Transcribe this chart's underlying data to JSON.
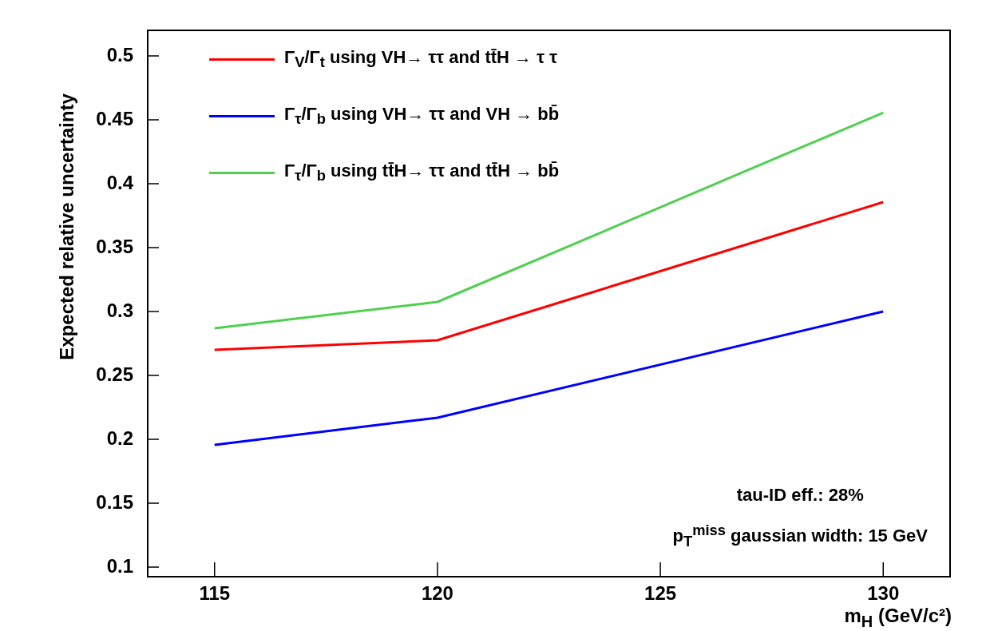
{
  "chart_data": {
    "type": "line",
    "xlabel": "m$_{H}$ (GeV/c²)",
    "ylabel": "Expected relative uncertainty",
    "x": [
      115,
      120,
      130
    ],
    "series": [
      {
        "name": "Γ$_{V}$/Γ$_{t}$ using VH→ ττ and tt̄H → τ τ",
        "color": "#ff0000",
        "values": [
          0.27,
          0.2775,
          0.3856
        ]
      },
      {
        "name": "Γ$_{τ}$/Γ$_{b}$ using VH→ ττ and VH → bb̄",
        "color": "#0000ff",
        "values": [
          0.1956,
          0.2169,
          0.3
        ]
      },
      {
        "name": "Γ$_{τ}$/Γ$_{b}$ using tt̄H→ ττ and tt̄H → bb̄",
        "color": "#4fd04f",
        "values": [
          0.2869,
          0.3075,
          0.4556
        ]
      }
    ],
    "xlim": [
      113.5,
      131.5
    ],
    "xticks": [
      115,
      120,
      125,
      130
    ],
    "ylim": [
      0.0925,
      0.52
    ],
    "yticks": [
      0.1,
      0.15,
      0.2,
      0.25,
      0.3,
      0.35,
      0.4,
      0.45,
      0.5
    ],
    "grid": false,
    "legend": "top left",
    "marker": "none",
    "line_style": "solid",
    "annotations": [
      "tau-ID eff.: 28%",
      "p$_{T}$$^{miss}$ gaussian width: 15 GeV"
    ]
  }
}
